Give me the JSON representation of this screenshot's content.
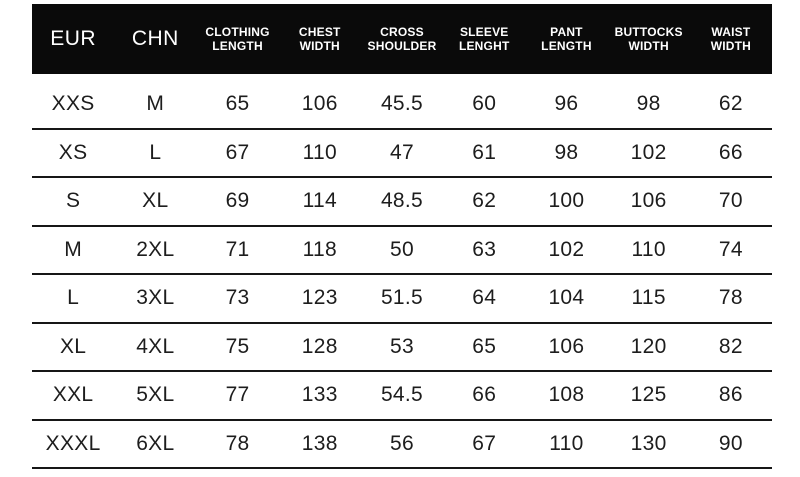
{
  "chart_data": {
    "type": "table",
    "columns": [
      "EUR",
      "CHN",
      "CLOTHING LENGTH",
      "CHEST WIDTH",
      "CROSS SHOULDER",
      "SLEEVE LENGHT",
      "PANT LENGTH",
      "BUTTOCKS WIDTH",
      "WAIST WIDTH"
    ],
    "rows": [
      [
        "XXS",
        "M",
        "65",
        "106",
        "45.5",
        "60",
        "96",
        "98",
        "62"
      ],
      [
        "XS",
        "L",
        "67",
        "110",
        "47",
        "61",
        "98",
        "102",
        "66"
      ],
      [
        "S",
        "XL",
        "69",
        "114",
        "48.5",
        "62",
        "100",
        "106",
        "70"
      ],
      [
        "M",
        "2XL",
        "71",
        "118",
        "50",
        "63",
        "102",
        "110",
        "74"
      ],
      [
        "L",
        "3XL",
        "73",
        "123",
        "51.5",
        "64",
        "104",
        "115",
        "78"
      ],
      [
        "XL",
        "4XL",
        "75",
        "128",
        "53",
        "65",
        "106",
        "120",
        "82"
      ],
      [
        "XXL",
        "5XL",
        "77",
        "133",
        "54.5",
        "66",
        "108",
        "125",
        "86"
      ],
      [
        "XXXL",
        "6XL",
        "78",
        "138",
        "56",
        "67",
        "110",
        "130",
        "90"
      ]
    ],
    "layout": {
      "header_background": "#0a0a0a",
      "header_text_color": "#ffffff",
      "body_text_color": "#1d1d1d",
      "divider_color": "#161616",
      "background": "#ffffff"
    }
  }
}
